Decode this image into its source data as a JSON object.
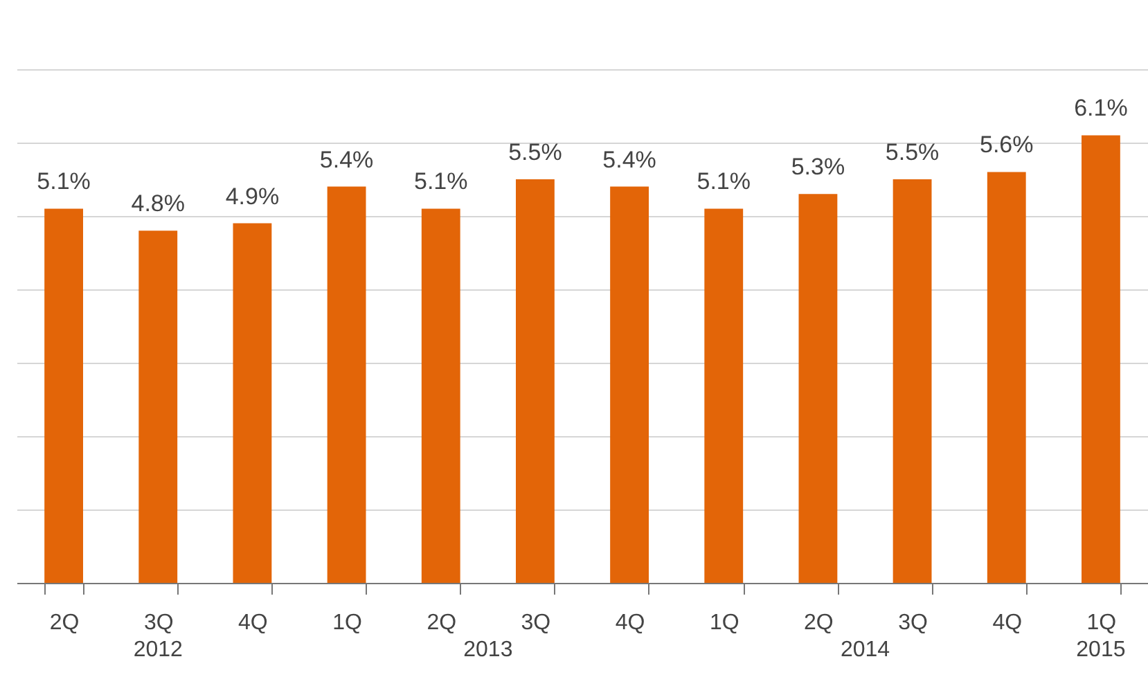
{
  "chart_data": {
    "type": "bar",
    "categories": [
      "2Q",
      "3Q",
      "4Q",
      "1Q",
      "2Q",
      "3Q",
      "4Q",
      "1Q",
      "2Q",
      "3Q",
      "4Q",
      "1Q"
    ],
    "values": [
      5.1,
      4.8,
      4.9,
      5.4,
      5.1,
      5.5,
      5.4,
      5.1,
      5.3,
      5.5,
      5.6,
      6.1
    ],
    "value_labels": [
      "5.1%",
      "4.8%",
      "4.9%",
      "5.4%",
      "5.1%",
      "5.5%",
      "5.4%",
      "5.1%",
      "5.3%",
      "5.5%",
      "5.6%",
      "6.1%"
    ],
    "color": "#e36508",
    "ylim": [
      0,
      7
    ],
    "yticks": [
      {
        "value": 0,
        "label": null
      },
      {
        "value": 1,
        "label": null
      },
      {
        "value": 2,
        "label": null
      },
      {
        "value": 3,
        "label": null
      },
      {
        "value": 4,
        "label": null
      },
      {
        "value": 5,
        "label": null
      },
      {
        "value": 6,
        "label": null
      },
      {
        "value": 7,
        "label": null
      }
    ],
    "tick_labels": "x",
    "grid": "y",
    "annotations": [
      "2012",
      "2013",
      "2014",
      "2015"
    ]
  }
}
